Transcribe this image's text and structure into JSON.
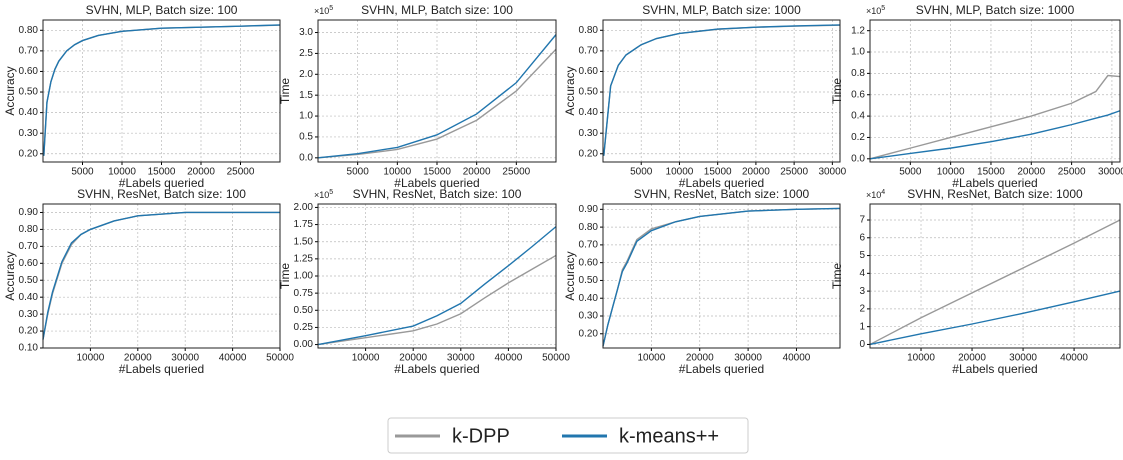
{
  "chart_data": [
    {
      "type": "line",
      "title": "SVHN, MLP, Batch size: 100",
      "xlabel": "#Labels queried",
      "ylabel": "Accuracy",
      "x": [
        100,
        500,
        1000,
        1500,
        2000,
        3000,
        4000,
        5000,
        7000,
        10000,
        15000,
        20000,
        25000,
        30000
      ],
      "series": [
        {
          "name": "k-DPP",
          "color": "#999999",
          "values": [
            0.19,
            0.45,
            0.55,
            0.61,
            0.65,
            0.7,
            0.73,
            0.75,
            0.775,
            0.795,
            0.81,
            0.815,
            0.82,
            0.825
          ]
        },
        {
          "name": "k-means++",
          "color": "#2176ae",
          "values": [
            0.19,
            0.45,
            0.55,
            0.61,
            0.65,
            0.7,
            0.73,
            0.75,
            0.775,
            0.795,
            0.81,
            0.815,
            0.82,
            0.826
          ]
        }
      ],
      "xlim": [
        0,
        30000
      ],
      "ylim": [
        0.16,
        0.85
      ],
      "xticks": [
        5000,
        10000,
        15000,
        20000,
        25000
      ],
      "yticks": [
        {
          "value": 0.2,
          "label": "0.20"
        },
        {
          "value": 0.3,
          "label": "0.30"
        },
        {
          "value": 0.4,
          "label": "0.40"
        },
        {
          "value": 0.5,
          "label": "0.50"
        },
        {
          "value": 0.6,
          "label": "0.60"
        },
        {
          "value": 0.7,
          "label": "0.70"
        },
        {
          "value": 0.8,
          "label": "0.80"
        }
      ],
      "grid": true
    },
    {
      "type": "line",
      "title": "SVHN, MLP, Batch size: 100",
      "xlabel": "#Labels queried",
      "ylabel": "Time",
      "y_multiplier": {
        "base": "×10",
        "exponent": "5"
      },
      "x": [
        0,
        5000,
        10000,
        15000,
        20000,
        25000,
        30000
      ],
      "series": [
        {
          "name": "k-DPP",
          "color": "#999999",
          "values": [
            0,
            0.08,
            0.2,
            0.45,
            0.9,
            1.6,
            2.6
          ]
        },
        {
          "name": "k-means++",
          "color": "#2176ae",
          "values": [
            0,
            0.1,
            0.25,
            0.55,
            1.05,
            1.8,
            2.95
          ]
        }
      ],
      "xlim": [
        0,
        30000
      ],
      "ylim": [
        -0.1,
        3.3
      ],
      "xticks": [
        5000,
        10000,
        15000,
        20000,
        25000
      ],
      "yticks": [
        {
          "value": 0,
          "label": "0.0"
        },
        0.5,
        {
          "value": 1,
          "label": "1.0"
        },
        1.5,
        {
          "value": 2,
          "label": "2.0"
        },
        2.5,
        {
          "value": 3,
          "label": "3.0"
        }
      ],
      "grid": true
    },
    {
      "type": "line",
      "title": "SVHN, MLP, Batch size: 1000",
      "xlabel": "#Labels queried",
      "ylabel": "Accuracy",
      "x": [
        100,
        1000,
        2000,
        3000,
        5000,
        7000,
        10000,
        15000,
        20000,
        25000,
        31000
      ],
      "series": [
        {
          "name": "k-DPP",
          "color": "#999999",
          "values": [
            0.19,
            0.53,
            0.63,
            0.68,
            0.73,
            0.76,
            0.785,
            0.805,
            0.815,
            0.82,
            0.825
          ]
        },
        {
          "name": "k-means++",
          "color": "#2176ae",
          "values": [
            0.19,
            0.53,
            0.63,
            0.68,
            0.73,
            0.76,
            0.785,
            0.806,
            0.815,
            0.821,
            0.826
          ]
        }
      ],
      "xlim": [
        0,
        31000
      ],
      "ylim": [
        0.16,
        0.85
      ],
      "xticks": [
        5000,
        10000,
        15000,
        20000,
        25000,
        30000
      ],
      "yticks": [
        {
          "value": 0.2,
          "label": "0.20"
        },
        {
          "value": 0.3,
          "label": "0.30"
        },
        {
          "value": 0.4,
          "label": "0.40"
        },
        {
          "value": 0.5,
          "label": "0.50"
        },
        {
          "value": 0.6,
          "label": "0.60"
        },
        {
          "value": 0.7,
          "label": "0.70"
        },
        {
          "value": 0.8,
          "label": "0.80"
        }
      ],
      "grid": true
    },
    {
      "type": "line",
      "title": "SVHN, MLP, Batch size: 1000",
      "xlabel": "#Labels queried",
      "ylabel": "Time",
      "y_multiplier": {
        "base": "×10",
        "exponent": "5"
      },
      "x": [
        0,
        5000,
        10000,
        15000,
        20000,
        25000,
        28000,
        29500,
        31000
      ],
      "series": [
        {
          "name": "k-DPP",
          "color": "#999999",
          "values": [
            0,
            0.1,
            0.2,
            0.3,
            0.4,
            0.52,
            0.63,
            0.78,
            0.77
          ]
        },
        {
          "name": "k-means++",
          "color": "#2176ae",
          "values": [
            0,
            0.05,
            0.1,
            0.16,
            0.23,
            0.32,
            0.38,
            0.41,
            0.45
          ]
        }
      ],
      "xlim": [
        0,
        31000
      ],
      "ylim": [
        -0.03,
        1.3
      ],
      "xticks": [
        5000,
        10000,
        15000,
        20000,
        25000,
        30000
      ],
      "yticks": [
        {
          "value": 0,
          "label": "0.0"
        },
        0.2,
        0.4,
        0.6,
        0.8,
        {
          "value": 1,
          "label": "1.0"
        },
        1.2
      ],
      "grid": true
    },
    {
      "type": "line",
      "title": "SVHN, ResNet, Batch size: 100",
      "xlabel": "#Labels queried",
      "ylabel": "Accuracy",
      "x": [
        0,
        1000,
        2000,
        4000,
        6000,
        8000,
        10000,
        15000,
        20000,
        30000,
        40000,
        50000
      ],
      "series": [
        {
          "name": "k-DPP",
          "color": "#999999",
          "values": [
            0.15,
            0.3,
            0.42,
            0.6,
            0.71,
            0.77,
            0.8,
            0.85,
            0.88,
            0.9,
            0.9,
            0.9
          ]
        },
        {
          "name": "k-means++",
          "color": "#2176ae",
          "values": [
            0.15,
            0.31,
            0.43,
            0.61,
            0.72,
            0.77,
            0.8,
            0.85,
            0.88,
            0.9,
            0.9,
            0.9
          ]
        }
      ],
      "xlim": [
        0,
        50000
      ],
      "ylim": [
        0.1,
        0.95
      ],
      "xticks": [
        10000,
        20000,
        30000,
        40000,
        50000
      ],
      "yticks": [
        {
          "value": 0.1,
          "label": "0.10"
        },
        {
          "value": 0.2,
          "label": "0.20"
        },
        {
          "value": 0.3,
          "label": "0.30"
        },
        {
          "value": 0.4,
          "label": "0.40"
        },
        {
          "value": 0.5,
          "label": "0.50"
        },
        {
          "value": 0.6,
          "label": "0.60"
        },
        {
          "value": 0.7,
          "label": "0.70"
        },
        {
          "value": 0.8,
          "label": "0.80"
        },
        {
          "value": 0.9,
          "label": "0.90"
        }
      ],
      "grid": true
    },
    {
      "type": "line",
      "title": "SVHN, ResNet, Batch size: 100",
      "xlabel": "#Labels queried",
      "ylabel": "Time",
      "y_multiplier": {
        "base": "×10",
        "exponent": "5"
      },
      "x": [
        0,
        10000,
        20000,
        25000,
        30000,
        35000,
        40000,
        45000,
        50000
      ],
      "series": [
        {
          "name": "k-DPP",
          "color": "#999999",
          "values": [
            0,
            0.1,
            0.2,
            0.3,
            0.45,
            0.68,
            0.9,
            1.1,
            1.3
          ]
        },
        {
          "name": "k-means++",
          "color": "#2176ae",
          "values": [
            0,
            0.13,
            0.27,
            0.42,
            0.6,
            0.88,
            1.15,
            1.43,
            1.72
          ]
        }
      ],
      "xlim": [
        0,
        50000
      ],
      "ylim": [
        -0.05,
        2.05
      ],
      "xticks": [
        10000,
        20000,
        30000,
        40000,
        50000
      ],
      "yticks": [
        {
          "value": 0,
          "label": "0.00"
        },
        0.25,
        {
          "value": 0.5,
          "label": "0.50"
        },
        0.75,
        {
          "value": 1,
          "label": "1.00"
        },
        1.25,
        {
          "value": 1.5,
          "label": "1.50"
        },
        1.75,
        {
          "value": 2,
          "label": "2.00"
        }
      ],
      "grid": true
    },
    {
      "type": "line",
      "title": "SVHN, ResNet, Batch size: 1000",
      "xlabel": "#Labels queried",
      "ylabel": "Accuracy",
      "x": [
        0,
        1000,
        2000,
        3000,
        4000,
        5000,
        7000,
        10000,
        15000,
        20000,
        30000,
        40000,
        49000
      ],
      "series": [
        {
          "name": "k-DPP",
          "color": "#999999",
          "values": [
            0.13,
            0.25,
            0.35,
            0.45,
            0.56,
            0.61,
            0.73,
            0.79,
            0.83,
            0.86,
            0.89,
            0.9,
            0.905
          ]
        },
        {
          "name": "k-means++",
          "color": "#2176ae",
          "values": [
            0.13,
            0.25,
            0.35,
            0.45,
            0.55,
            0.6,
            0.72,
            0.78,
            0.83,
            0.86,
            0.89,
            0.9,
            0.905
          ]
        }
      ],
      "xlim": [
        0,
        49000
      ],
      "ylim": [
        0.12,
        0.93
      ],
      "xticks": [
        10000,
        20000,
        30000,
        40000
      ],
      "yticks": [
        {
          "value": 0.2,
          "label": "0.20"
        },
        {
          "value": 0.3,
          "label": "0.30"
        },
        {
          "value": 0.4,
          "label": "0.40"
        },
        {
          "value": 0.5,
          "label": "0.50"
        },
        {
          "value": 0.6,
          "label": "0.60"
        },
        {
          "value": 0.7,
          "label": "0.70"
        },
        {
          "value": 0.8,
          "label": "0.80"
        },
        {
          "value": 0.9,
          "label": "0.90"
        }
      ],
      "grid": true
    },
    {
      "type": "line",
      "title": "SVHN, ResNet, Batch size: 1000",
      "xlabel": "#Labels queried",
      "ylabel": "Time",
      "y_multiplier": {
        "base": "×10",
        "exponent": "4"
      },
      "x": [
        0,
        10000,
        20000,
        30000,
        40000,
        49000
      ],
      "series": [
        {
          "name": "k-DPP",
          "color": "#999999",
          "values": [
            0,
            1.5,
            2.9,
            4.3,
            5.7,
            7.0
          ]
        },
        {
          "name": "k-means++",
          "color": "#2176ae",
          "values": [
            0,
            0.6,
            1.15,
            1.75,
            2.4,
            3.0
          ]
        }
      ],
      "xlim": [
        0,
        49000
      ],
      "ylim": [
        -0.2,
        7.9
      ],
      "xticks": [
        10000,
        20000,
        30000,
        40000
      ],
      "yticks": [
        0,
        1,
        2,
        3,
        4,
        5,
        6,
        7
      ],
      "grid": true
    }
  ]
}
